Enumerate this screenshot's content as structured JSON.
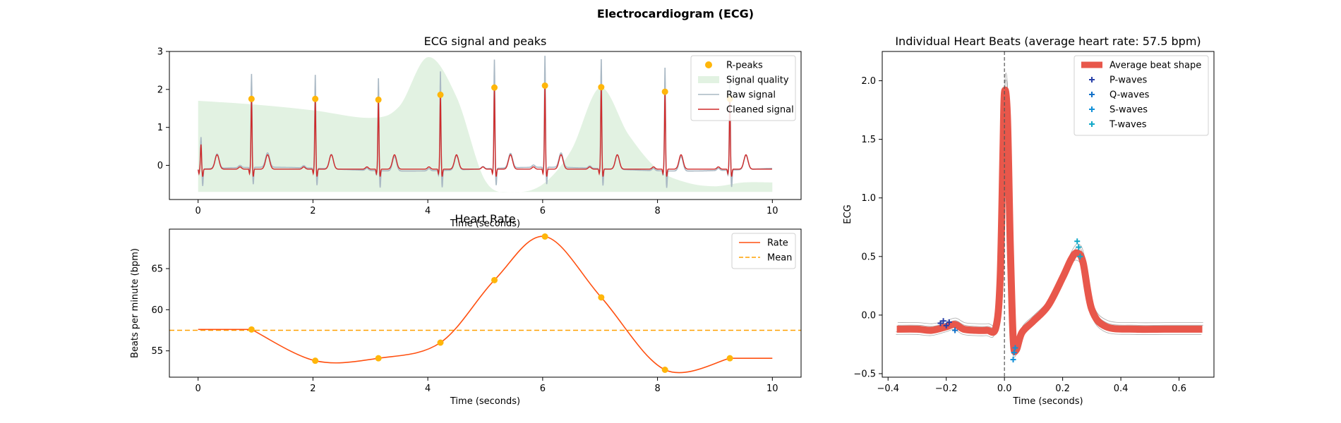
{
  "title": "Electrocardiogram (ECG)",
  "chart_data": [
    {
      "type": "line",
      "title": "ECG signal and peaks",
      "xlabel": "Time (seconds)",
      "ylabel": "",
      "xlim": [
        -0.5,
        10.5
      ],
      "ylim": [
        -0.9,
        3.0
      ],
      "xticks": [
        0,
        2,
        4,
        6,
        8,
        10
      ],
      "yticks": [
        0,
        1,
        2,
        3
      ],
      "legend_position": "top-right",
      "legend": [
        "R-peaks",
        "Signal quality",
        "Raw signal",
        "Cleaned signal"
      ],
      "r_peaks": {
        "x": [
          0.93,
          2.04,
          3.14,
          4.22,
          5.16,
          6.04,
          7.02,
          8.13,
          9.26
        ],
        "y": [
          1.75,
          1.75,
          1.73,
          1.86,
          2.05,
          2.1,
          2.06,
          1.94,
          1.75
        ]
      },
      "signal_quality": {
        "x": [
          0,
          1,
          2,
          3,
          3.5,
          4,
          4.5,
          5,
          5.5,
          6,
          6.5,
          7,
          7.5,
          8,
          8.5,
          9,
          9.5,
          10
        ],
        "y": [
          1.7,
          1.6,
          1.45,
          1.25,
          1.55,
          2.85,
          1.8,
          -0.4,
          -0.7,
          -0.5,
          0.4,
          2.05,
          0.8,
          -0.1,
          -0.45,
          -0.55,
          -0.45,
          -0.45
        ]
      },
      "colors": {
        "r_peaks": "#FFB60A",
        "signal_quality": "#E2F2E2",
        "raw": "#A9B8C4",
        "cleaned": "#CF2A2A"
      }
    },
    {
      "type": "line",
      "title": "Heart Rate",
      "xlabel": "Time (seconds)",
      "ylabel": "Beats per minute (bpm)",
      "xlim": [
        -0.5,
        10.5
      ],
      "ylim": [
        51.8,
        69.8
      ],
      "xticks": [
        0,
        2,
        4,
        6,
        8,
        10
      ],
      "yticks": [
        55,
        60,
        65
      ],
      "legend_position": "top-right",
      "legend": [
        "Rate",
        "Mean"
      ],
      "rate": {
        "x": [
          0,
          0.93,
          2.04,
          3.14,
          4.22,
          5.16,
          6.04,
          7.02,
          8.13,
          9.26,
          10
        ],
        "y": [
          57.6,
          57.6,
          53.8,
          54.1,
          56.0,
          63.6,
          68.9,
          61.5,
          52.7,
          54.1,
          54.1
        ]
      },
      "mean": 57.5,
      "colors": {
        "rate": "#FF5010",
        "mean": "#FFA000",
        "points": "#FFB60A"
      }
    },
    {
      "type": "line",
      "title": "Individual Heart Beats (average heart rate: 57.5 bpm)",
      "xlabel": "Time (seconds)",
      "ylabel": "ECG",
      "xlim": [
        -0.42,
        0.72
      ],
      "ylim": [
        -0.53,
        2.25
      ],
      "xticks": [
        -0.4,
        -0.2,
        0.0,
        0.2,
        0.4,
        0.6
      ],
      "xtick_labels": [
        "−0.4",
        "−0.2",
        "0.0",
        "0.2",
        "0.4",
        "0.6"
      ],
      "yticks": [
        -0.5,
        0.0,
        0.5,
        1.0,
        1.5,
        2.0
      ],
      "ytick_labels": [
        "−0.5",
        "0.0",
        "0.5",
        "1.0",
        "1.5",
        "2.0"
      ],
      "legend_position": "top-right",
      "legend": [
        "Average beat shape",
        "P-waves",
        "Q-waves",
        "S-waves",
        "T-waves"
      ],
      "average_beat": {
        "x": [
          -0.37,
          -0.3,
          -0.25,
          -0.2,
          -0.17,
          -0.14,
          -0.1,
          -0.06,
          -0.03,
          -0.015,
          -0.005,
          0.0,
          0.01,
          0.02,
          0.03,
          0.04,
          0.06,
          0.1,
          0.15,
          0.2,
          0.23,
          0.25,
          0.27,
          0.3,
          0.35,
          0.45,
          0.55,
          0.68
        ],
        "y": [
          -0.12,
          -0.12,
          -0.13,
          -0.1,
          -0.08,
          -0.12,
          -0.13,
          -0.13,
          -0.11,
          0.3,
          1.4,
          1.9,
          1.7,
          0.6,
          -0.2,
          -0.3,
          -0.15,
          -0.05,
          0.08,
          0.32,
          0.48,
          0.53,
          0.45,
          0.05,
          -0.1,
          -0.12,
          -0.12,
          -0.12
        ]
      },
      "p_waves": {
        "x": [
          -0.22,
          -0.21,
          -0.2,
          -0.19
        ],
        "y": [
          -0.07,
          -0.05,
          -0.09,
          -0.06
        ]
      },
      "q_waves": {
        "x": [
          -0.17
        ],
        "y": [
          -0.13
        ]
      },
      "s_waves": {
        "x": [
          0.03,
          0.033,
          0.037
        ],
        "y": [
          -0.38,
          -0.32,
          -0.28
        ]
      },
      "t_waves": {
        "x": [
          0.25,
          0.255,
          0.26
        ],
        "y": [
          0.63,
          0.58,
          0.5
        ]
      },
      "zero_line_x": 0.0,
      "colors": {
        "average_beat": "#E8574B",
        "individual": "#AAAAAA",
        "p_waves": "#2840A8",
        "q_waves": "#1070C8",
        "s_waves": "#1090D8",
        "t_waves": "#10A8C8"
      }
    }
  ]
}
